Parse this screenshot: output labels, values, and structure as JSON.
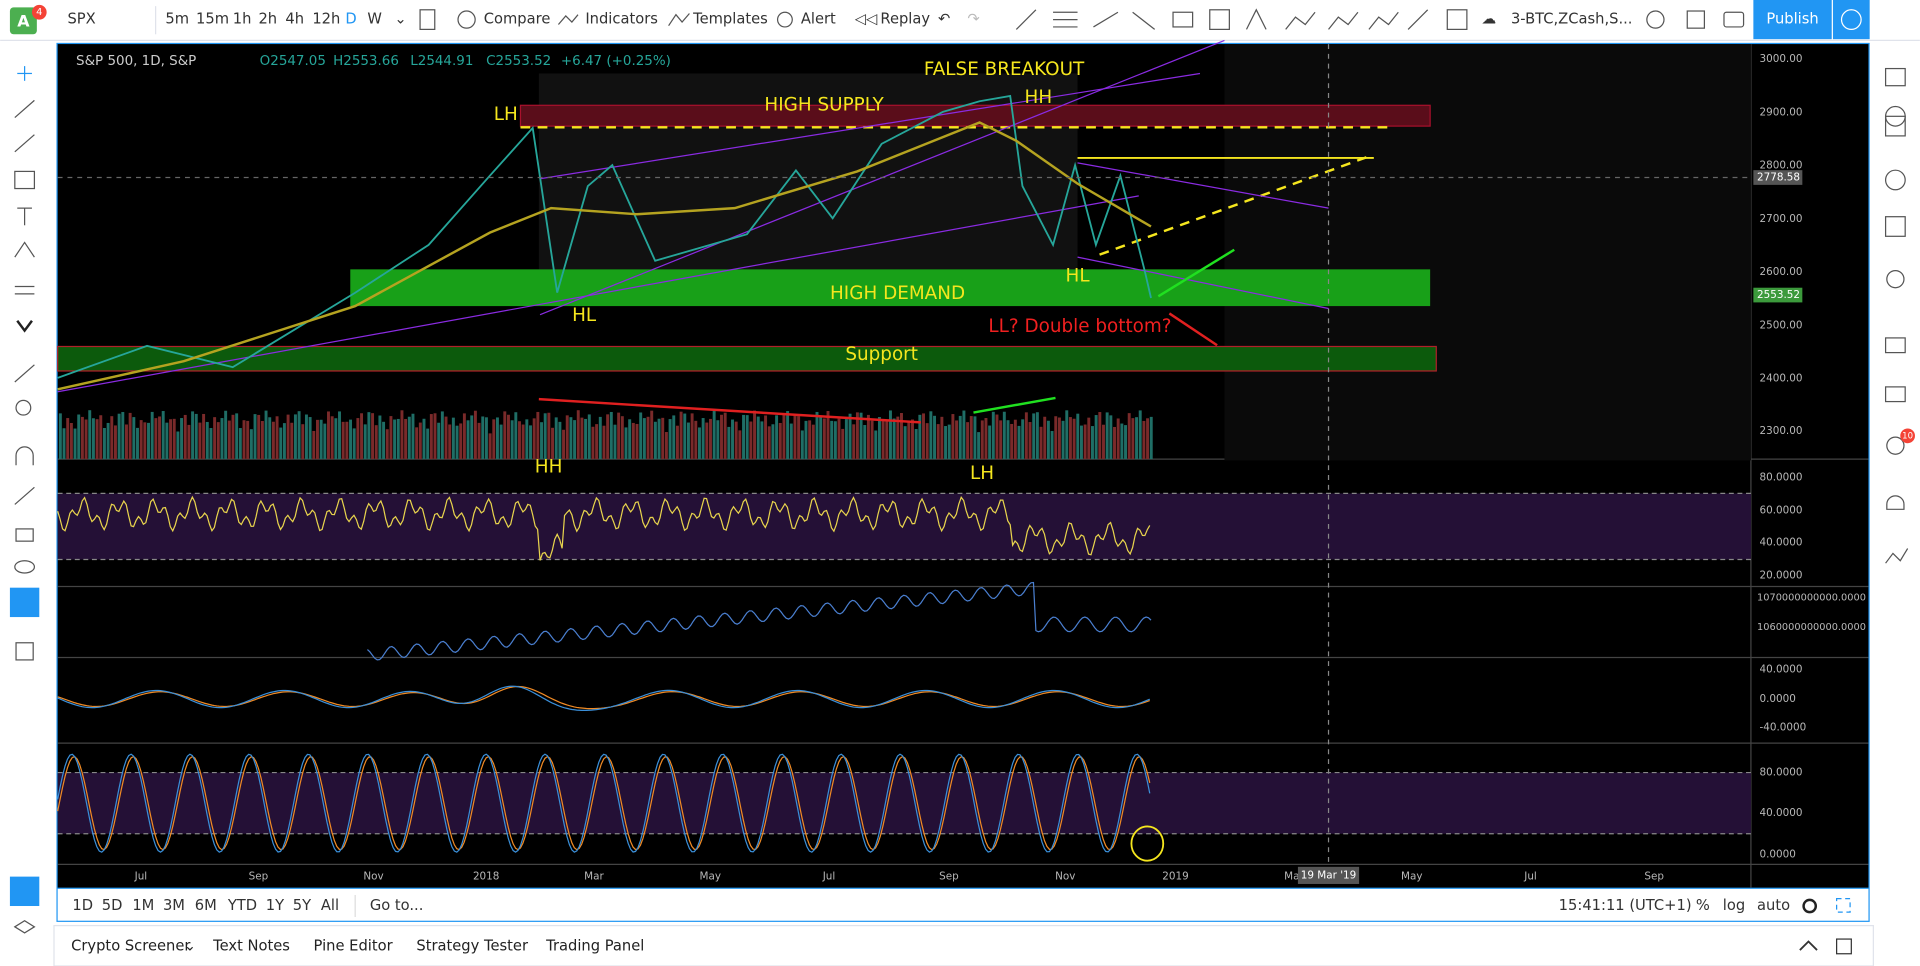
{
  "toolbar": {
    "symbol": "SPX",
    "intervals": [
      "5m",
      "15m",
      "1h",
      "2h",
      "4h",
      "12h",
      "D",
      "W"
    ],
    "buttons": [
      "Compare",
      "Indicators",
      "Templates",
      "Alert",
      "Replay"
    ],
    "watchlist": "3-BTC,ZCash,S...",
    "publish": "Publish",
    "badge": "4"
  },
  "legend": {
    "title": "S&P 500, 1D, S&P",
    "open": "O2547.05",
    "high": "H2553.66",
    "low": "L2544.91",
    "close": "C2553.52",
    "change": "+6.47 (+0.25%)"
  },
  "annotations": {
    "false_breakout": "FALSE BREAKOUT",
    "hh_top": "HH",
    "lh_left": "LH",
    "high_supply": "HIGH SUPPLY",
    "high_demand": "HIGH DEMAND",
    "hl_left": "HL",
    "hl_right": "HL",
    "double_bottom": "LL? Double bottom?",
    "support": "Support",
    "rsi_hh": "HH",
    "rsi_lh": "LH"
  },
  "price_axis": {
    "labels": [
      "3000.00",
      "2900.00",
      "2800.00",
      "2700.00",
      "2600.00",
      "2500.00",
      "2400.00",
      "2300.00"
    ],
    "crosshair": "2778.58",
    "last": "2553.52"
  },
  "rsi_axis": [
    "80.0000",
    "60.0000",
    "40.0000",
    "20.0000"
  ],
  "obv_axis": [
    "1070000000000.0000",
    "1060000000000.0000"
  ],
  "macd_axis": [
    "40.0000",
    "0.0000",
    "-40.0000"
  ],
  "stoch_axis": [
    "80.0000",
    "40.0000",
    "0.0000"
  ],
  "time_axis": {
    "labels": [
      "Jul",
      "Sep",
      "Nov",
      "2018",
      "Mar",
      "May",
      "Jul",
      "Sep",
      "Nov",
      "2019",
      "Ma",
      "May",
      "Jul",
      "Sep"
    ],
    "cursor": "19 Mar '19"
  },
  "bottom_bar": {
    "ranges": [
      "1D",
      "5D",
      "1M",
      "3M",
      "6M",
      "YTD",
      "1Y",
      "5Y",
      "All"
    ],
    "goto": "Go to...",
    "clock": "15:41:11 (UTC+1)",
    "percent": "%",
    "log": "log",
    "auto": "auto"
  },
  "tabs": [
    "Crypto Screener",
    "Text Notes",
    "Pine Editor",
    "Strategy Tester",
    "Trading Panel"
  ],
  "notifications": "10"
}
